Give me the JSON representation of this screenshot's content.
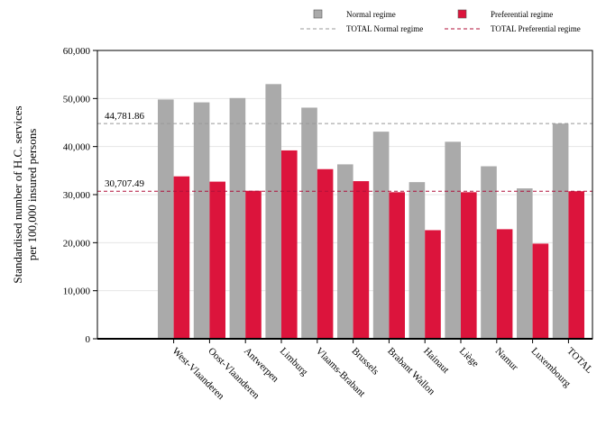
{
  "chart_data": {
    "type": "bar",
    "title": "",
    "xlabel": "",
    "ylabel": [
      "Standardised number of H.C. services",
      "per 100,000 insured persons"
    ],
    "ylim": [
      0,
      60000
    ],
    "yticks": [
      "0",
      "10,000",
      "20,000",
      "30,000",
      "40,000",
      "50,000",
      "60,000"
    ],
    "ytick_values": [
      0,
      10000,
      20000,
      30000,
      40000,
      50000,
      60000
    ],
    "categories": [
      "West-Vlaanderen",
      "Oost-Vlaanderen",
      "Antwerpen",
      "Limburg",
      "Vlaams-Brabant",
      "Brussels",
      "Brabant Wallon",
      "Hainaut",
      "Liège",
      "Namur",
      "Luxembourg",
      "TOTAL"
    ],
    "series": [
      {
        "name": "Normal regime",
        "color": "#aaaaaa",
        "values": [
          49800,
          49200,
          50100,
          53000,
          48100,
          36300,
          43100,
          32600,
          41000,
          35900,
          31300,
          44782
        ]
      },
      {
        "name": "Preferential regime",
        "color": "#dc143c",
        "values": [
          33800,
          32700,
          30800,
          39200,
          35300,
          32800,
          30500,
          22600,
          30500,
          22800,
          19800,
          30707
        ]
      }
    ],
    "reference_lines": [
      {
        "name": "TOTAL Normal regime",
        "value": 44781.86,
        "label": "44,781.86",
        "color": "#999999"
      },
      {
        "name": "TOTAL Preferential regime",
        "value": 30707.49,
        "label": "30,707.49",
        "color": "#b0103a"
      }
    ],
    "legend_position": "top-right",
    "grid": true
  }
}
